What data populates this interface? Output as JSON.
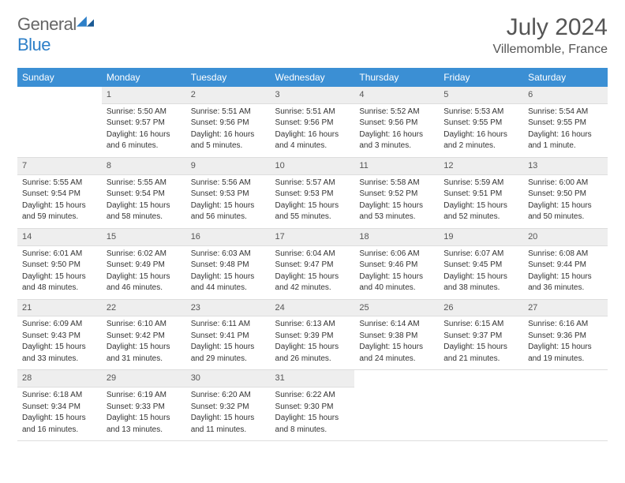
{
  "brand": {
    "part1": "General",
    "part2": "Blue"
  },
  "title": "July 2024",
  "subtitle": "Villemomble, France",
  "colors": {
    "header_bg": "#3b8fd4",
    "header_fg": "#ffffff",
    "daynum_bg": "#eeeeee",
    "text": "#333333",
    "title_color": "#555555"
  },
  "weekdays": [
    "Sunday",
    "Monday",
    "Tuesday",
    "Wednesday",
    "Thursday",
    "Friday",
    "Saturday"
  ],
  "grid": [
    [
      null,
      {
        "n": "1",
        "sr": "Sunrise: 5:50 AM",
        "ss": "Sunset: 9:57 PM",
        "d1": "Daylight: 16 hours",
        "d2": "and 6 minutes."
      },
      {
        "n": "2",
        "sr": "Sunrise: 5:51 AM",
        "ss": "Sunset: 9:56 PM",
        "d1": "Daylight: 16 hours",
        "d2": "and 5 minutes."
      },
      {
        "n": "3",
        "sr": "Sunrise: 5:51 AM",
        "ss": "Sunset: 9:56 PM",
        "d1": "Daylight: 16 hours",
        "d2": "and 4 minutes."
      },
      {
        "n": "4",
        "sr": "Sunrise: 5:52 AM",
        "ss": "Sunset: 9:56 PM",
        "d1": "Daylight: 16 hours",
        "d2": "and 3 minutes."
      },
      {
        "n": "5",
        "sr": "Sunrise: 5:53 AM",
        "ss": "Sunset: 9:55 PM",
        "d1": "Daylight: 16 hours",
        "d2": "and 2 minutes."
      },
      {
        "n": "6",
        "sr": "Sunrise: 5:54 AM",
        "ss": "Sunset: 9:55 PM",
        "d1": "Daylight: 16 hours",
        "d2": "and 1 minute."
      }
    ],
    [
      {
        "n": "7",
        "sr": "Sunrise: 5:55 AM",
        "ss": "Sunset: 9:54 PM",
        "d1": "Daylight: 15 hours",
        "d2": "and 59 minutes."
      },
      {
        "n": "8",
        "sr": "Sunrise: 5:55 AM",
        "ss": "Sunset: 9:54 PM",
        "d1": "Daylight: 15 hours",
        "d2": "and 58 minutes."
      },
      {
        "n": "9",
        "sr": "Sunrise: 5:56 AM",
        "ss": "Sunset: 9:53 PM",
        "d1": "Daylight: 15 hours",
        "d2": "and 56 minutes."
      },
      {
        "n": "10",
        "sr": "Sunrise: 5:57 AM",
        "ss": "Sunset: 9:53 PM",
        "d1": "Daylight: 15 hours",
        "d2": "and 55 minutes."
      },
      {
        "n": "11",
        "sr": "Sunrise: 5:58 AM",
        "ss": "Sunset: 9:52 PM",
        "d1": "Daylight: 15 hours",
        "d2": "and 53 minutes."
      },
      {
        "n": "12",
        "sr": "Sunrise: 5:59 AM",
        "ss": "Sunset: 9:51 PM",
        "d1": "Daylight: 15 hours",
        "d2": "and 52 minutes."
      },
      {
        "n": "13",
        "sr": "Sunrise: 6:00 AM",
        "ss": "Sunset: 9:50 PM",
        "d1": "Daylight: 15 hours",
        "d2": "and 50 minutes."
      }
    ],
    [
      {
        "n": "14",
        "sr": "Sunrise: 6:01 AM",
        "ss": "Sunset: 9:50 PM",
        "d1": "Daylight: 15 hours",
        "d2": "and 48 minutes."
      },
      {
        "n": "15",
        "sr": "Sunrise: 6:02 AM",
        "ss": "Sunset: 9:49 PM",
        "d1": "Daylight: 15 hours",
        "d2": "and 46 minutes."
      },
      {
        "n": "16",
        "sr": "Sunrise: 6:03 AM",
        "ss": "Sunset: 9:48 PM",
        "d1": "Daylight: 15 hours",
        "d2": "and 44 minutes."
      },
      {
        "n": "17",
        "sr": "Sunrise: 6:04 AM",
        "ss": "Sunset: 9:47 PM",
        "d1": "Daylight: 15 hours",
        "d2": "and 42 minutes."
      },
      {
        "n": "18",
        "sr": "Sunrise: 6:06 AM",
        "ss": "Sunset: 9:46 PM",
        "d1": "Daylight: 15 hours",
        "d2": "and 40 minutes."
      },
      {
        "n": "19",
        "sr": "Sunrise: 6:07 AM",
        "ss": "Sunset: 9:45 PM",
        "d1": "Daylight: 15 hours",
        "d2": "and 38 minutes."
      },
      {
        "n": "20",
        "sr": "Sunrise: 6:08 AM",
        "ss": "Sunset: 9:44 PM",
        "d1": "Daylight: 15 hours",
        "d2": "and 36 minutes."
      }
    ],
    [
      {
        "n": "21",
        "sr": "Sunrise: 6:09 AM",
        "ss": "Sunset: 9:43 PM",
        "d1": "Daylight: 15 hours",
        "d2": "and 33 minutes."
      },
      {
        "n": "22",
        "sr": "Sunrise: 6:10 AM",
        "ss": "Sunset: 9:42 PM",
        "d1": "Daylight: 15 hours",
        "d2": "and 31 minutes."
      },
      {
        "n": "23",
        "sr": "Sunrise: 6:11 AM",
        "ss": "Sunset: 9:41 PM",
        "d1": "Daylight: 15 hours",
        "d2": "and 29 minutes."
      },
      {
        "n": "24",
        "sr": "Sunrise: 6:13 AM",
        "ss": "Sunset: 9:39 PM",
        "d1": "Daylight: 15 hours",
        "d2": "and 26 minutes."
      },
      {
        "n": "25",
        "sr": "Sunrise: 6:14 AM",
        "ss": "Sunset: 9:38 PM",
        "d1": "Daylight: 15 hours",
        "d2": "and 24 minutes."
      },
      {
        "n": "26",
        "sr": "Sunrise: 6:15 AM",
        "ss": "Sunset: 9:37 PM",
        "d1": "Daylight: 15 hours",
        "d2": "and 21 minutes."
      },
      {
        "n": "27",
        "sr": "Sunrise: 6:16 AM",
        "ss": "Sunset: 9:36 PM",
        "d1": "Daylight: 15 hours",
        "d2": "and 19 minutes."
      }
    ],
    [
      {
        "n": "28",
        "sr": "Sunrise: 6:18 AM",
        "ss": "Sunset: 9:34 PM",
        "d1": "Daylight: 15 hours",
        "d2": "and 16 minutes."
      },
      {
        "n": "29",
        "sr": "Sunrise: 6:19 AM",
        "ss": "Sunset: 9:33 PM",
        "d1": "Daylight: 15 hours",
        "d2": "and 13 minutes."
      },
      {
        "n": "30",
        "sr": "Sunrise: 6:20 AM",
        "ss": "Sunset: 9:32 PM",
        "d1": "Daylight: 15 hours",
        "d2": "and 11 minutes."
      },
      {
        "n": "31",
        "sr": "Sunrise: 6:22 AM",
        "ss": "Sunset: 9:30 PM",
        "d1": "Daylight: 15 hours",
        "d2": "and 8 minutes."
      },
      null,
      null,
      null
    ]
  ]
}
